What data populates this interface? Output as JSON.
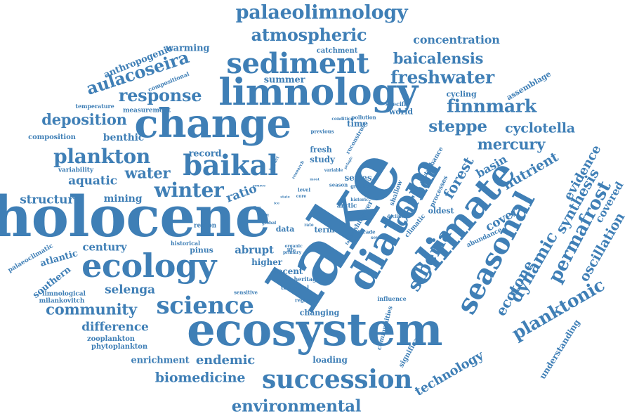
{
  "word_cloud": {
    "color": "#3f7fb6",
    "words": {
      "lake": "lake",
      "holocene": "holocene",
      "ecosystem": "ecosystem",
      "change": "change",
      "limnology": "limnology",
      "diatom": "diatom",
      "climate": "climate",
      "ecology": "ecology",
      "sediment": "sediment",
      "seasonal": "seasonal",
      "baikal": "baikal",
      "succession": "succession",
      "science": "science",
      "palaeolimnology": "palaeolimnology",
      "atmospheric": "atmospheric",
      "environmental": "environmental",
      "siberia": "siberia",
      "carbon": "carbon",
      "permafrost": "permafrost",
      "planktonic": "planktonic",
      "dynamic": "dynamic",
      "ecotone": "ecotone",
      "freshwater": "freshwater",
      "response": "response",
      "plankton": "plankton",
      "winter": "winter",
      "biomedicine": "biomedicine",
      "community": "community",
      "baicalensis": "baicalensis",
      "aulacoseira": "aulacoseira",
      "finnmark": "finnmark",
      "steppe": "steppe",
      "mercury": "mercury",
      "forest": "forest",
      "deposition": "deposition",
      "water": "water",
      "cyclotella": "cyclotella",
      "synthesis": "synthesis",
      "nutrient": "nutrient",
      "evidence": "evidence",
      "oscillation": "oscillation",
      "covered": "covered",
      "technology": "technology",
      "endemic": "endemic",
      "difference": "difference",
      "selenga": "selenga",
      "aquatic": "aquatic",
      "structure": "structure",
      "concentration": "concentration",
      "basin": "basin",
      "cover": "cover",
      "ratio": "ratio",
      "century": "century",
      "abrupt": "abrupt",
      "mining": "mining",
      "benthic": "benthic",
      "record": "record",
      "enrichment": "enrichment",
      "southern": "southern",
      "atlantic": "atlantic",
      "anthropogenic": "anthropogenic",
      "warming": "warming",
      "summer": "summer",
      "series": "series",
      "time": "time",
      "study": "study",
      "fresh": "fresh",
      "recent": "recent",
      "higher": "higher",
      "loading": "loading",
      "changing": "changing",
      "term": "term",
      "world": "world",
      "oldest": "oldest",
      "pinus": "pinus",
      "data": "data",
      "zooplankton": "zooplankton",
      "phytoplankton": "phytoplankton",
      "milankovitch": "milankovitch",
      "limnological": "limnological",
      "palaeoclimatic": "palaeoclimatic",
      "composition": "composition",
      "variability": "variability",
      "temperature": "temperature",
      "measurement": "measurement",
      "compositional": "compositional",
      "catchment": "catchment",
      "cycling": "cycling",
      "assemblage": "assemblage",
      "understanding": "understanding",
      "significant": "significant",
      "communities": "communities",
      "shallow": "shallow",
      "disturbance": "disturbance",
      "processes": "processes",
      "abundance": "abundance",
      "climatic": "climatic",
      "river": "river",
      "arctic": "arctic",
      "shift": "shift",
      "region": "region",
      "historical": "historical",
      "heritage": "heritage",
      "temporal": "temporal",
      "regional": "regional",
      "influence": "influence",
      "sensitive": "sensitive",
      "pollution": "pollution",
      "condition": "condition",
      "reconstruct": "reconstruct",
      "previous": "previous",
      "specific": "specific",
      "greatest": "greatest",
      "season": "season",
      "variable": "variable",
      "decline": "decline",
      "life": "life",
      "level": "level",
      "decade": "decade",
      "sewage": "sewage",
      "historic": "historic",
      "impact": "impact",
      "primary": "primary",
      "organic": "organic",
      "factor": "factor",
      "core": "core",
      "rate": "rate",
      "global": "global",
      "research": "research",
      "source": "source",
      "pollen": "pollen",
      "result": "result",
      "state": "state",
      "pelagic": "pelagic",
      "most": "most",
      "ice": "ice"
    }
  }
}
